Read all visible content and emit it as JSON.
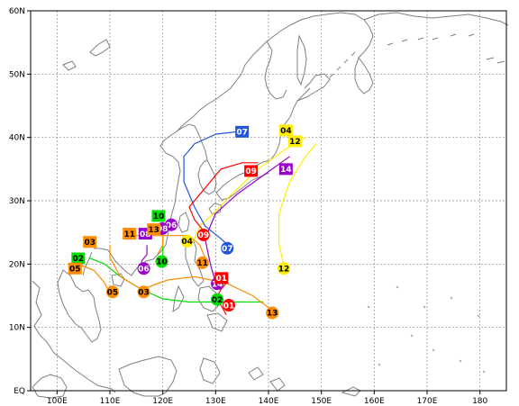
{
  "map": {
    "lon_range": [
      95,
      185
    ],
    "lat_range": [
      0,
      60
    ],
    "grid": "dashed",
    "land_color": "#ffffff",
    "coast_color": "#7f7f7f",
    "x_ticks": [
      "100E",
      "110E",
      "120E",
      "130E",
      "140E",
      "150E",
      "160E",
      "170E",
      "180"
    ],
    "y_ticks": [
      "EQ",
      "10N",
      "20N",
      "30N",
      "40N",
      "50N",
      "60N"
    ]
  },
  "tracks": [
    {
      "id": "01",
      "color": "#ff0000",
      "start_shape": "circle",
      "end_shape": "square",
      "points": [
        [
          132,
          12
        ],
        [
          131,
          13.5
        ],
        [
          130,
          14.5
        ],
        [
          131,
          16
        ],
        [
          132,
          17
        ]
      ]
    },
    {
      "id": "02",
      "color": "#00dd00",
      "start_shape": "circle",
      "end_shape": "square",
      "points": [
        [
          139,
          14
        ],
        [
          135,
          14
        ],
        [
          131,
          14
        ],
        [
          125,
          14
        ],
        [
          120,
          14.5
        ],
        [
          116,
          16
        ],
        [
          112,
          18
        ],
        [
          109,
          20
        ],
        [
          106,
          21
        ]
      ]
    },
    {
      "id": "03",
      "color": "#ff8c00",
      "start_shape": "circle",
      "end_shape": "square",
      "points": [
        [
          141,
          12.5
        ],
        [
          137,
          15
        ],
        [
          132,
          17
        ],
        [
          126,
          18
        ],
        [
          121,
          17.5
        ],
        [
          116,
          16
        ],
        [
          112,
          18
        ],
        [
          110,
          21
        ],
        [
          110,
          23
        ]
      ]
    },
    {
      "id": "04",
      "color": "#ffee00",
      "start_shape": "circle",
      "end_shape": "square",
      "points": [
        [
          126,
          24
        ],
        [
          127,
          26
        ],
        [
          129,
          27.5
        ],
        [
          133,
          31
        ],
        [
          138,
          35
        ],
        [
          143,
          38
        ],
        [
          147,
          40
        ]
      ]
    },
    {
      "id": "05",
      "color": "#ff8c00",
      "start_shape": "circle",
      "end_shape": "square",
      "points": [
        [
          110,
          15.5
        ],
        [
          109,
          17
        ],
        [
          107,
          19
        ],
        [
          104,
          20
        ]
      ]
    },
    {
      "id": "06",
      "color": "#9900cc",
      "start_shape": "circle",
      "end_shape": "square",
      "points": [
        [
          116,
          19.5
        ],
        [
          116,
          20.5
        ],
        [
          117,
          21.5
        ],
        [
          117,
          23
        ]
      ]
    },
    {
      "id": "07",
      "color": "#2255dd",
      "start_shape": "circle",
      "end_shape": "square",
      "points": [
        [
          133,
          22.5
        ],
        [
          131,
          24
        ],
        [
          128,
          26
        ],
        [
          126,
          29
        ],
        [
          124,
          33
        ],
        [
          124,
          37
        ],
        [
          126,
          39
        ],
        [
          130,
          40.5
        ],
        [
          135,
          41
        ]
      ]
    },
    {
      "id": "08",
      "color": "#9900cc",
      "start_shape": "circle",
      "end_shape": "square",
      "points": [
        [
          122,
          26
        ],
        [
          119,
          25
        ],
        [
          117,
          24.5
        ]
      ]
    },
    {
      "id": "09",
      "color": "#ff0000",
      "start_shape": "circle",
      "end_shape": "square",
      "points": [
        [
          128,
          25
        ],
        [
          126,
          27
        ],
        [
          125,
          29
        ],
        [
          128,
          32
        ],
        [
          131,
          35
        ],
        [
          135,
          36
        ],
        [
          138,
          36
        ]
      ]
    },
    {
      "id": "10",
      "color": "#00dd00",
      "start_shape": "circle",
      "end_shape": "square",
      "points": [
        [
          120,
          21
        ],
        [
          120,
          23
        ],
        [
          120,
          25
        ],
        [
          120,
          28
        ]
      ]
    },
    {
      "id": "11",
      "color": "#ff8c00",
      "start_shape": "circle",
      "end_shape": "square",
      "points": [
        [
          128,
          21
        ],
        [
          127,
          23
        ],
        [
          125,
          24.5
        ],
        [
          120,
          24.5
        ],
        [
          114,
          24.5
        ]
      ]
    },
    {
      "id": "12",
      "color": "#ffee00",
      "start_shape": "circle",
      "end_shape": "square",
      "points": [
        [
          143,
          19.5
        ],
        [
          142,
          23
        ],
        [
          142,
          28
        ],
        [
          144,
          33
        ],
        [
          147,
          37
        ],
        [
          149,
          39
        ]
      ]
    },
    {
      "id": "13",
      "color": "#ff8c00",
      "start_shape": "circle",
      "end_shape": "square",
      "points": [
        [
          119,
          21.5
        ],
        [
          120,
          23
        ],
        [
          120,
          25
        ],
        [
          119,
          25
        ]
      ]
    },
    {
      "id": "14",
      "color": "#9900cc",
      "start_shape": "circle",
      "end_shape": "square",
      "points": [
        [
          130,
          17
        ],
        [
          129,
          20
        ],
        [
          128,
          24
        ],
        [
          130,
          28
        ],
        [
          134,
          31
        ],
        [
          139,
          34
        ],
        [
          144,
          37
        ]
      ]
    }
  ],
  "labels": [
    {
      "text": "07",
      "color": "#2255dd",
      "shape": "square",
      "lon": 135,
      "lat": 40.9
    },
    {
      "text": "04",
      "color": "#ffee00",
      "shape": "square",
      "lon": 143.3,
      "lat": 41.1
    },
    {
      "text": "12",
      "color": "#ffee00",
      "shape": "square",
      "lon": 145,
      "lat": 39.4
    },
    {
      "text": "14",
      "color": "#9900cc",
      "shape": "square",
      "lon": 143.3,
      "lat": 35
    },
    {
      "text": "09",
      "color": "#ff0000",
      "shape": "square",
      "lon": 136.7,
      "lat": 34.7
    },
    {
      "text": "10",
      "color": "#00dd00",
      "shape": "square",
      "lon": 119.2,
      "lat": 27.6
    },
    {
      "text": "06",
      "color": "#9900cc",
      "shape": "circle",
      "lon": 121.6,
      "lat": 26.2
    },
    {
      "text": "08",
      "color": "#9900cc",
      "shape": "circle",
      "lon": 119.9,
      "lat": 25.6
    },
    {
      "text": "11",
      "color": "#ff8c00",
      "shape": "square",
      "lon": 113.7,
      "lat": 24.8
    },
    {
      "text": "08",
      "color": "#9900cc",
      "shape": "square",
      "lon": 116.7,
      "lat": 24.8
    },
    {
      "text": "13",
      "color": "#ff8c00",
      "shape": "square",
      "lon": 118.3,
      "lat": 25.5
    },
    {
      "text": "04",
      "color": "#ffee00",
      "shape": "circle",
      "lon": 124.6,
      "lat": 23.6
    },
    {
      "text": "09",
      "color": "#ff0000",
      "shape": "circle",
      "lon": 127.7,
      "lat": 24.6
    },
    {
      "text": "07",
      "color": "#2255dd",
      "shape": "circle",
      "lon": 132.2,
      "lat": 22.5
    },
    {
      "text": "11",
      "color": "#ff8c00",
      "shape": "circle",
      "lon": 127.5,
      "lat": 20.2
    },
    {
      "text": "12",
      "color": "#ffee00",
      "shape": "circle",
      "lon": 142.9,
      "lat": 19.3
    },
    {
      "text": "03",
      "color": "#ff8c00",
      "shape": "square",
      "lon": 106.2,
      "lat": 23.5
    },
    {
      "text": "02",
      "color": "#00dd00",
      "shape": "square",
      "lon": 104,
      "lat": 20.9
    },
    {
      "text": "05",
      "color": "#ff8c00",
      "shape": "square",
      "lon": 103.4,
      "lat": 19.3
    },
    {
      "text": "10",
      "color": "#00dd00",
      "shape": "circle",
      "lon": 119.8,
      "lat": 20.4
    },
    {
      "text": "06",
      "color": "#9900cc",
      "shape": "circle",
      "lon": 116.4,
      "lat": 19.3
    },
    {
      "text": "05",
      "color": "#ff8c00",
      "shape": "circle",
      "lon": 110.5,
      "lat": 15.6
    },
    {
      "text": "03",
      "color": "#ff8c00",
      "shape": "circle",
      "lon": 116.4,
      "lat": 15.6
    },
    {
      "text": "02",
      "color": "#00dd00",
      "shape": "circle",
      "lon": 130.3,
      "lat": 14.4
    },
    {
      "text": "01",
      "color": "#ff0000",
      "shape": "circle",
      "lon": 132.5,
      "lat": 13.5
    },
    {
      "text": "13",
      "color": "#ff8c00",
      "shape": "circle",
      "lon": 140.7,
      "lat": 12.3
    },
    {
      "text": "14",
      "color": "#9900cc",
      "shape": "circle",
      "lon": 130.3,
      "lat": 16.9
    },
    {
      "text": "01",
      "color": "#ff0000",
      "shape": "square",
      "lon": 131.1,
      "lat": 17.8
    }
  ]
}
